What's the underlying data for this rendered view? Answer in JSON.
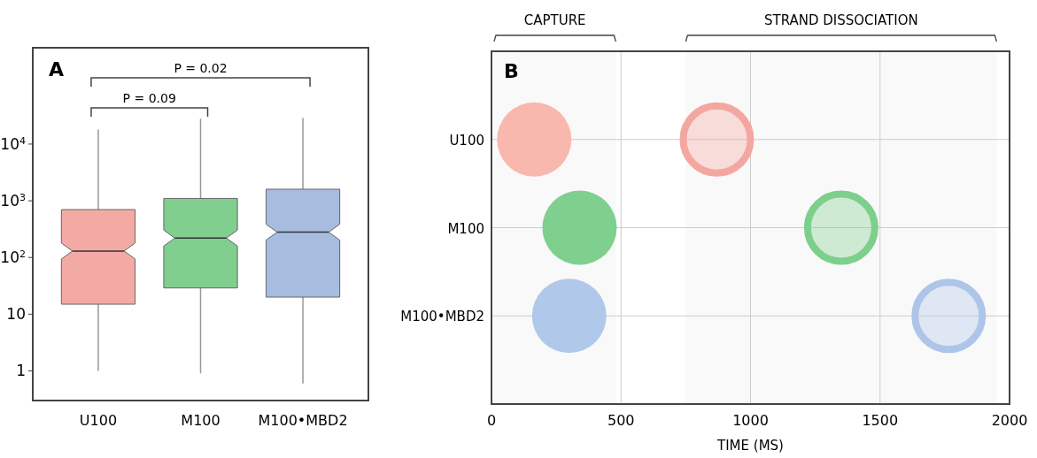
{
  "chart_data": [
    {
      "type": "box",
      "title": "A",
      "categories": [
        "U100",
        "M100",
        "M100•MBD2"
      ],
      "colors": [
        "#f4aaa4",
        "#80cf8f",
        "#a7bde0"
      ],
      "boxes": [
        {
          "low": 1,
          "q1": 15,
          "median": 130,
          "q3": 700,
          "high": 18000
        },
        {
          "low": 0.9,
          "q1": 29,
          "median": 220,
          "q3": 1100,
          "high": 28000
        },
        {
          "low": 0.6,
          "q1": 20,
          "median": 280,
          "q3": 1600,
          "high": 29000
        }
      ],
      "log": true,
      "ylim": [
        0.3,
        500000
      ],
      "yticks": [
        1,
        10,
        {
          "value": 100,
          "label": "10$^{2}$"
        },
        {
          "value": 1000,
          "label": "10$^{3}$"
        },
        {
          "value": 10000,
          "label": "10$^{4}$"
        }
      ],
      "annotations": [
        "P = 0.09",
        "P = 0.02"
      ]
    },
    {
      "type": "scatter",
      "title": "B",
      "xlabel": "TIME (MS)",
      "orientation": "horizontal",
      "categories": [
        "U100",
        "M100",
        "M100•MBD2"
      ],
      "series": [
        {
          "colors": [
            "#f8b8ae",
            "#7fcf8f",
            "#b0c8ea"
          ],
          "values": [
            165,
            340,
            300
          ]
        },
        {
          "colors": [
            "#f4a6a0",
            "#7dcf8c",
            "#adc5e8"
          ],
          "values": [
            870,
            1350,
            1765
          ]
        }
      ],
      "marker": "circle",
      "xlim": [
        0,
        2000
      ],
      "xticks": [
        0,
        500,
        1000,
        1500,
        2000
      ],
      "grid": true,
      "bands": [
        {
          "axis": "x",
          "from": 10,
          "to": 480,
          "label": "CAPTURE"
        },
        {
          "axis": "x",
          "from": 750,
          "to": 1950,
          "label": "STRAND DISSOCIATION"
        }
      ]
    }
  ]
}
